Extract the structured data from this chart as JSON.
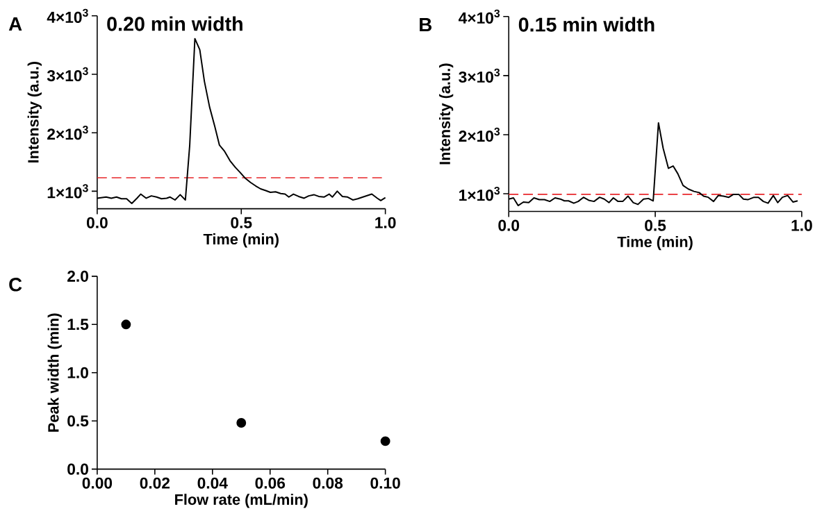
{
  "chart_data": [
    {
      "type": "line",
      "title": "0.20 min width",
      "xlabel": "Time (min)",
      "ylabel": "Intensity (a.u.)",
      "annotations": [
        "A"
      ],
      "color": "#000000",
      "xlim": [
        0,
        1
      ],
      "ylim": [
        700,
        4000
      ],
      "xticks": [
        {
          "value": 0,
          "label": "0.0"
        },
        {
          "value": 0.5,
          "label": "0.5"
        },
        {
          "value": 1,
          "label": "1.0"
        }
      ],
      "yticks": [
        {
          "value": 1000,
          "label": "1×10$^{3}$"
        },
        {
          "value": 2000,
          "label": "2×10$^{3}$"
        },
        {
          "value": 3000,
          "label": "3×10$^{3}$"
        },
        {
          "value": 4000,
          "label": "4×10$^{3}$"
        }
      ],
      "ref_lines": [
        {
          "axis": "y",
          "value": 1230,
          "color": "#e8262a",
          "line_style": "dashed"
        }
      ],
      "x": [
        0,
        0.031,
        0.049,
        0.067,
        0.084,
        0.102,
        0.12,
        0.138,
        0.151,
        0.17,
        0.188,
        0.206,
        0.223,
        0.241,
        0.253,
        0.27,
        0.288,
        0.306,
        0.321,
        0.339,
        0.356,
        0.372,
        0.39,
        0.408,
        0.424,
        0.441,
        0.461,
        0.479,
        0.496,
        0.514,
        0.532,
        0.55,
        0.567,
        0.585,
        0.601,
        0.619,
        0.637,
        0.652,
        0.665,
        0.681,
        0.699,
        0.718,
        0.734,
        0.752,
        0.769,
        0.787,
        0.805,
        0.816,
        0.833,
        0.851,
        0.869,
        0.887,
        0.904,
        0.922,
        0.953,
        0.972,
        0.984,
        1.0
      ],
      "values": [
        880,
        900,
        880,
        900,
        870,
        870,
        790,
        880,
        950,
        880,
        920,
        900,
        870,
        880,
        900,
        850,
        940,
        850,
        1780,
        3610,
        3420,
        2880,
        2440,
        2110,
        1790,
        1690,
        1520,
        1410,
        1320,
        1220,
        1150,
        1090,
        1040,
        1010,
        980,
        990,
        960,
        950,
        900,
        950,
        910,
        880,
        920,
        940,
        910,
        900,
        950,
        900,
        1000,
        910,
        900,
        850,
        870,
        900,
        950,
        880,
        840,
        890
      ]
    },
    {
      "type": "line",
      "title": "0.15 min width",
      "xlabel": "Time (min)",
      "ylabel": "Intensity (a.u.)",
      "annotations": [
        "B"
      ],
      "color": "#000000",
      "xlim": [
        0,
        1
      ],
      "ylim": [
        700,
        4000
      ],
      "xticks": [
        {
          "value": 0,
          "label": "0.0"
        },
        {
          "value": 0.5,
          "label": "0.5"
        },
        {
          "value": 1,
          "label": "1.0"
        }
      ],
      "yticks": [
        {
          "value": 1000,
          "label": "1×10$^{3}$"
        },
        {
          "value": 2000,
          "label": "2×10$^{3}$"
        },
        {
          "value": 3000,
          "label": "3×10$^{3}$"
        },
        {
          "value": 4000,
          "label": "4×10$^{3}$"
        }
      ],
      "ref_lines": [
        {
          "axis": "y",
          "value": 990,
          "color": "#e8262a",
          "line_style": "dashed"
        }
      ],
      "x": [
        0,
        0.016,
        0.032,
        0.05,
        0.068,
        0.086,
        0.104,
        0.122,
        0.14,
        0.158,
        0.176,
        0.19,
        0.204,
        0.222,
        0.237,
        0.255,
        0.273,
        0.291,
        0.31,
        0.326,
        0.342,
        0.357,
        0.373,
        0.389,
        0.407,
        0.425,
        0.441,
        0.46,
        0.477,
        0.493,
        0.511,
        0.527,
        0.545,
        0.561,
        0.577,
        0.595,
        0.613,
        0.632,
        0.65,
        0.665,
        0.681,
        0.699,
        0.715,
        0.733,
        0.751,
        0.767,
        0.785,
        0.801,
        0.816,
        0.837,
        0.852,
        0.869,
        0.885,
        0.903,
        0.918,
        0.934,
        0.952,
        0.97,
        0.986
      ],
      "values": [
        910,
        930,
        800,
        860,
        850,
        930,
        900,
        900,
        870,
        930,
        910,
        880,
        880,
        840,
        870,
        940,
        890,
        870,
        940,
        910,
        850,
        930,
        870,
        870,
        960,
        850,
        820,
        910,
        920,
        880,
        2200,
        1770,
        1430,
        1470,
        1340,
        1140,
        1080,
        1040,
        1020,
        960,
        940,
        870,
        970,
        960,
        940,
        990,
        990,
        910,
        900,
        940,
        940,
        870,
        840,
        970,
        850,
        940,
        970,
        860,
        880
      ]
    },
    {
      "type": "scatter",
      "xlabel": "Flow rate (mL/min)",
      "ylabel": "Peak width (min)",
      "annotations": [
        "C"
      ],
      "color": "#000000",
      "marker": "circle",
      "xlim": [
        0,
        0.1
      ],
      "ylim": [
        0,
        2
      ],
      "xticks": [
        {
          "value": 0,
          "label": "0.00"
        },
        {
          "value": 0.02,
          "label": "0.02"
        },
        {
          "value": 0.04,
          "label": "0.04"
        },
        {
          "value": 0.06,
          "label": "0.06"
        },
        {
          "value": 0.08,
          "label": "0.08"
        },
        {
          "value": 0.1,
          "label": "0.10"
        }
      ],
      "yticks": [
        {
          "value": 0,
          "label": "0.0"
        },
        {
          "value": 0.5,
          "label": "0.5"
        },
        {
          "value": 1,
          "label": "1.0"
        },
        {
          "value": 1.5,
          "label": "1.5"
        },
        {
          "value": 2,
          "label": "2.0"
        }
      ],
      "x": [
        0.01,
        0.05,
        0.1
      ],
      "values": [
        1.5,
        0.48,
        0.29
      ]
    }
  ]
}
